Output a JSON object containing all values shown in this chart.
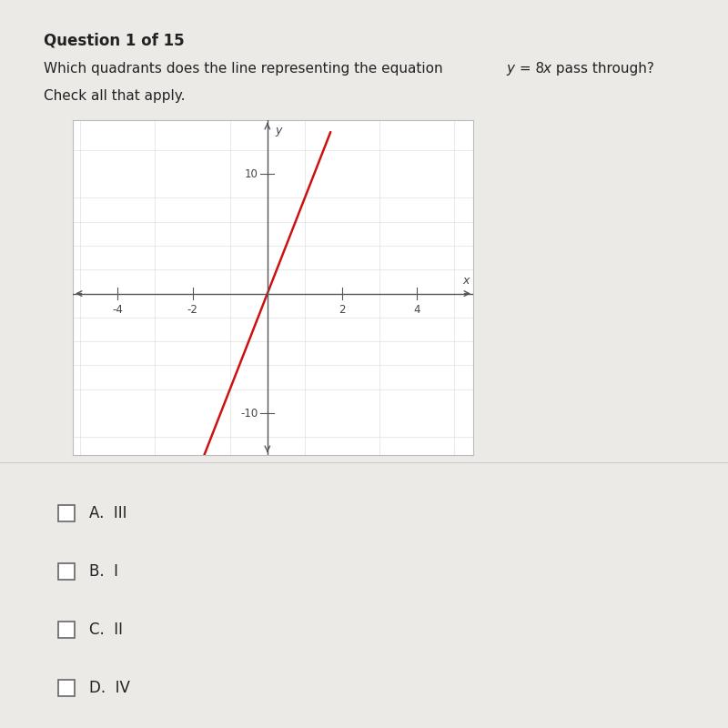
{
  "title": "Question 1 of 15",
  "bg_color": "#eceae6",
  "graph_bg": "#ffffff",
  "graph_border_color": "#bbbbbb",
  "xlim": [
    -5.2,
    5.5
  ],
  "ylim": [
    -13.5,
    14.5
  ],
  "xticks": [
    -4,
    -2,
    0,
    2,
    4
  ],
  "yticks": [
    -10,
    0,
    10
  ],
  "minor_xticks": [
    -5,
    -4,
    -3,
    -2,
    -1,
    0,
    1,
    2,
    3,
    4,
    5
  ],
  "minor_yticks": [
    -12,
    -10,
    -8,
    -6,
    -4,
    -2,
    0,
    2,
    4,
    6,
    8,
    10,
    12
  ],
  "line_color": "#cc1111",
  "line_x": [
    -1.6875,
    1.6875
  ],
  "line_y": [
    -13.5,
    13.5
  ],
  "options": [
    "A.  III",
    "B.  I",
    "C.  II",
    "D.  IV"
  ],
  "separator_color": "#cccccc",
  "text_color": "#222222",
  "tick_label_color": "#444444",
  "axis_color": "#555555",
  "grid_color": "#e0e0e0"
}
